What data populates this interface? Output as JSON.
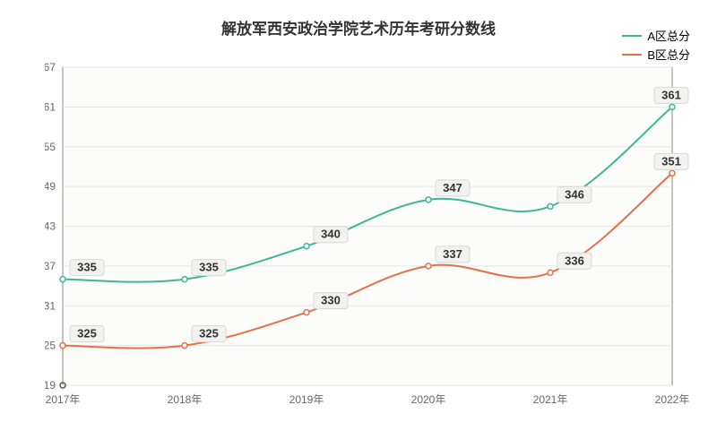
{
  "chart": {
    "type": "line",
    "title": "解放军西安政治学院艺术历年考研分数线",
    "title_fontsize": 17,
    "title_color": "#333333",
    "background_color": "#ffffff",
    "plot_background": "#fcfcfa",
    "grid_color": "#e6e6e6",
    "axis_color": "#888888",
    "origin_marker_color": "#555555",
    "x": {
      "categories": [
        "2017年",
        "2018年",
        "2019年",
        "2020年",
        "2021年",
        "2022年"
      ],
      "label_fontsize": 12,
      "label_color": "#666666"
    },
    "y": {
      "min": 319,
      "max": 367,
      "ticks": [
        319,
        325,
        331,
        337,
        343,
        349,
        355,
        361,
        367
      ],
      "label_fontsize": 12,
      "label_color": "#666666"
    },
    "series": [
      {
        "name": "A区总分",
        "color": "#3fb59b",
        "line_width": 2,
        "values": [
          335,
          335,
          340,
          347,
          346,
          361
        ],
        "marker_radius": 3,
        "data_label_fontsize": 13,
        "data_label_bg": "#f2f2f0",
        "data_label_color": "#333333"
      },
      {
        "name": "B区总分",
        "color": "#e4714a",
        "line_width": 2,
        "values": [
          325,
          325,
          330,
          337,
          336,
          351
        ],
        "marker_radius": 3,
        "data_label_fontsize": 13,
        "data_label_bg": "#f2f2f0",
        "data_label_color": "#333333"
      }
    ]
  }
}
